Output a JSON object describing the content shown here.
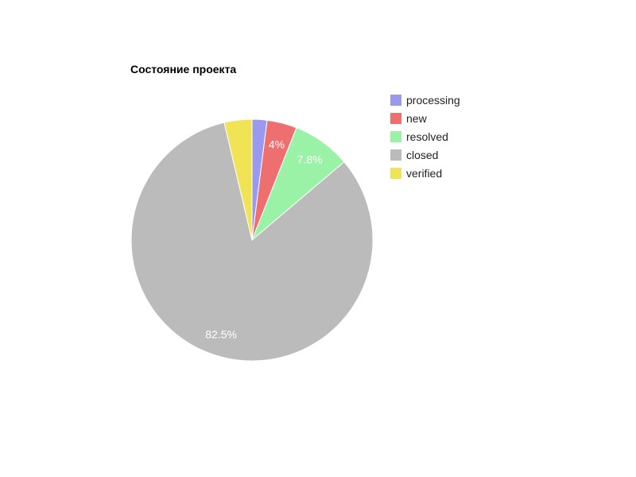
{
  "chart_data": {
    "type": "pie",
    "title": "Состояние проекта",
    "legend_position": "right",
    "slices": [
      {
        "name": "processing",
        "value": 2.0,
        "color": "#9999ee",
        "label": ""
      },
      {
        "name": "new",
        "value": 4.0,
        "color": "#ee6f6f",
        "label": "4%"
      },
      {
        "name": "resolved",
        "value": 7.8,
        "color": "#99f2a6",
        "label": "7.8%"
      },
      {
        "name": "closed",
        "value": 82.5,
        "color": "#bbbbbb",
        "label": "82.5%"
      },
      {
        "name": "verified",
        "value": 3.7,
        "color": "#f0e356",
        "label": ""
      }
    ]
  }
}
